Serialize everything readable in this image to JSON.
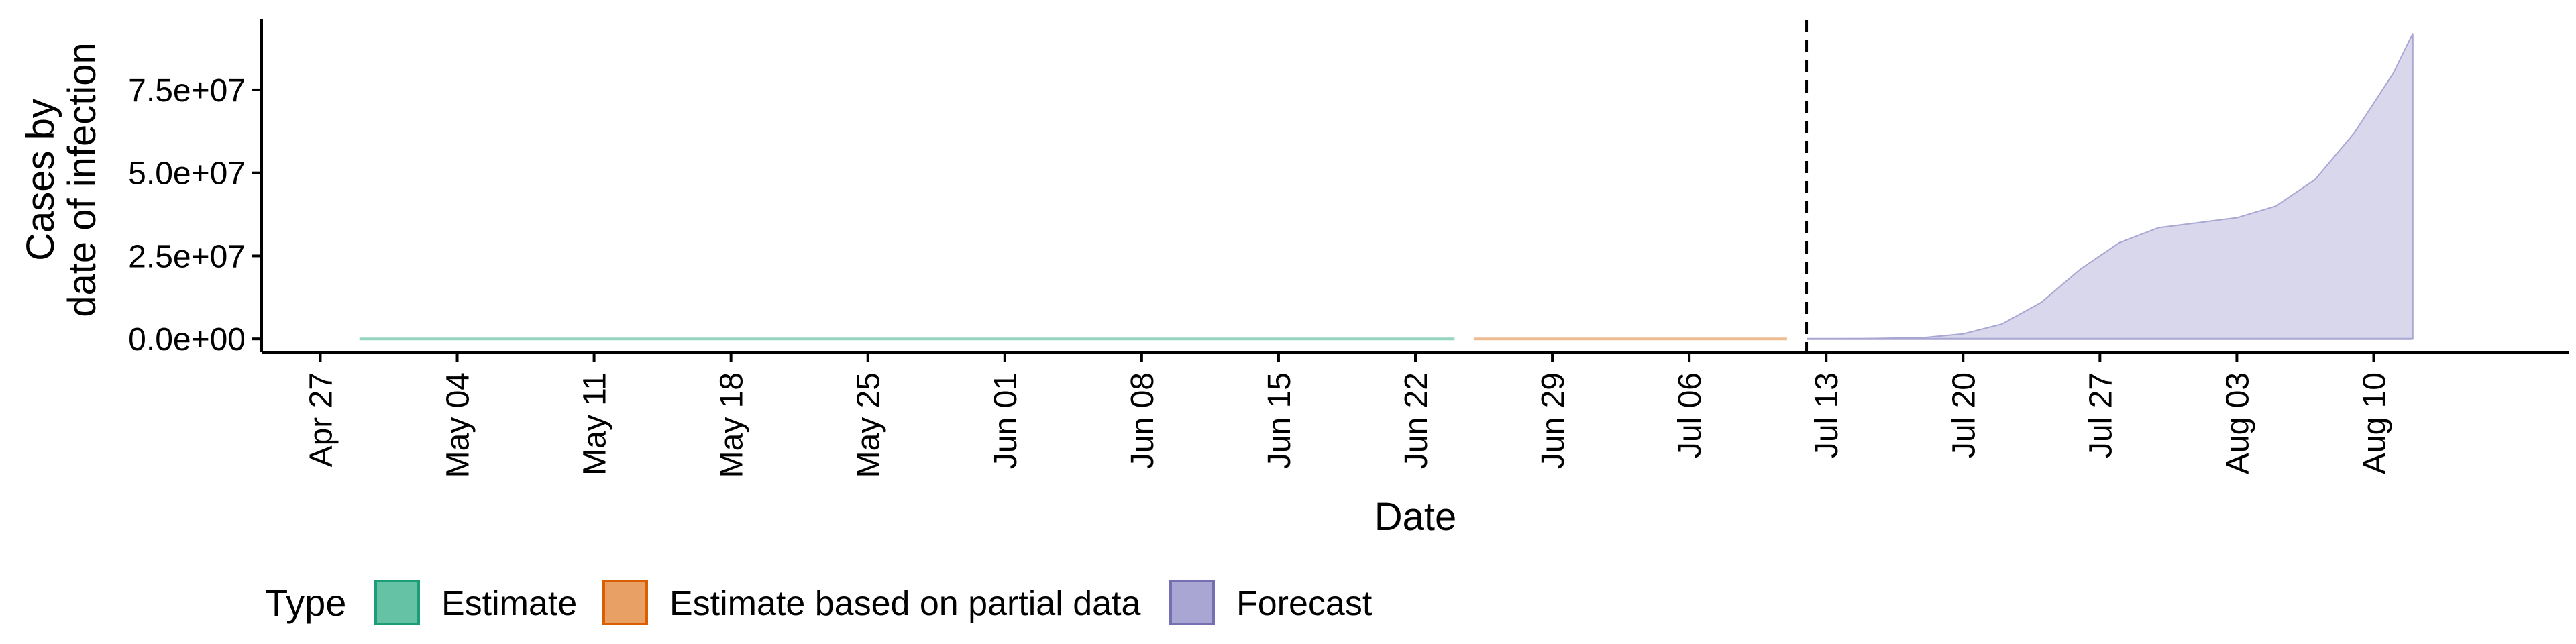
{
  "chart_data": {
    "type": "area",
    "xlabel": "Date",
    "ylabel_lines": [
      "Cases by",
      "date of infection"
    ],
    "x_ticks": [
      "Apr 27",
      "May 04",
      "May 11",
      "May 18",
      "May 25",
      "Jun 01",
      "Jun 08",
      "Jun 15",
      "Jun 22",
      "Jun 29",
      "Jul 06",
      "Jul 13",
      "Jul 20",
      "Jul 27",
      "Aug 03",
      "Aug 10"
    ],
    "y_ticks": [
      "0.0e+00",
      "2.5e+07",
      "5.0e+07",
      "7.5e+07"
    ],
    "y_tick_values": [
      0,
      25000000,
      50000000,
      75000000
    ],
    "ylim": [
      -4000000,
      96000000
    ],
    "xlim": [
      "2020-04-24",
      "2020-08-20"
    ],
    "vline_date": "2020-07-12",
    "legend": {
      "title": "Type",
      "position": "bottom",
      "items": [
        {
          "label": "Estimate",
          "fill": "#66C2A5",
          "stroke": "#1B9E77"
        },
        {
          "label": "Estimate based on partial data",
          "fill": "#E8A064",
          "stroke": "#D95F02"
        },
        {
          "label": "Forecast",
          "fill": "#A9A6D3",
          "stroke": "#7570B3"
        }
      ]
    },
    "series": [
      {
        "name": "Estimate",
        "color": "#66C2A5",
        "points": [
          {
            "x": "2020-04-29",
            "y": 0
          },
          {
            "x": "2020-06-24",
            "y": 0
          }
        ]
      },
      {
        "name": "Estimate based on partial data",
        "color": "#E8A064",
        "points": [
          {
            "x": "2020-06-25",
            "y": 0
          },
          {
            "x": "2020-07-11",
            "y": 0
          }
        ]
      },
      {
        "name": "Forecast",
        "color": "#A9A6D3",
        "points": [
          {
            "x": "2020-07-12",
            "y": 0
          },
          {
            "x": "2020-07-15",
            "y": 100000
          },
          {
            "x": "2020-07-18",
            "y": 400000
          },
          {
            "x": "2020-07-20",
            "y": 1500000
          },
          {
            "x": "2020-07-22",
            "y": 4500000
          },
          {
            "x": "2020-07-24",
            "y": 11000000
          },
          {
            "x": "2020-07-26",
            "y": 21000000
          },
          {
            "x": "2020-07-28",
            "y": 29000000
          },
          {
            "x": "2020-07-30",
            "y": 33500000
          },
          {
            "x": "2020-08-01",
            "y": 35000000
          },
          {
            "x": "2020-08-03",
            "y": 36500000
          },
          {
            "x": "2020-08-05",
            "y": 40000000
          },
          {
            "x": "2020-08-07",
            "y": 48000000
          },
          {
            "x": "2020-08-09",
            "y": 62000000
          },
          {
            "x": "2020-08-11",
            "y": 80000000
          },
          {
            "x": "2020-08-12",
            "y": 92000000
          }
        ]
      }
    ]
  }
}
